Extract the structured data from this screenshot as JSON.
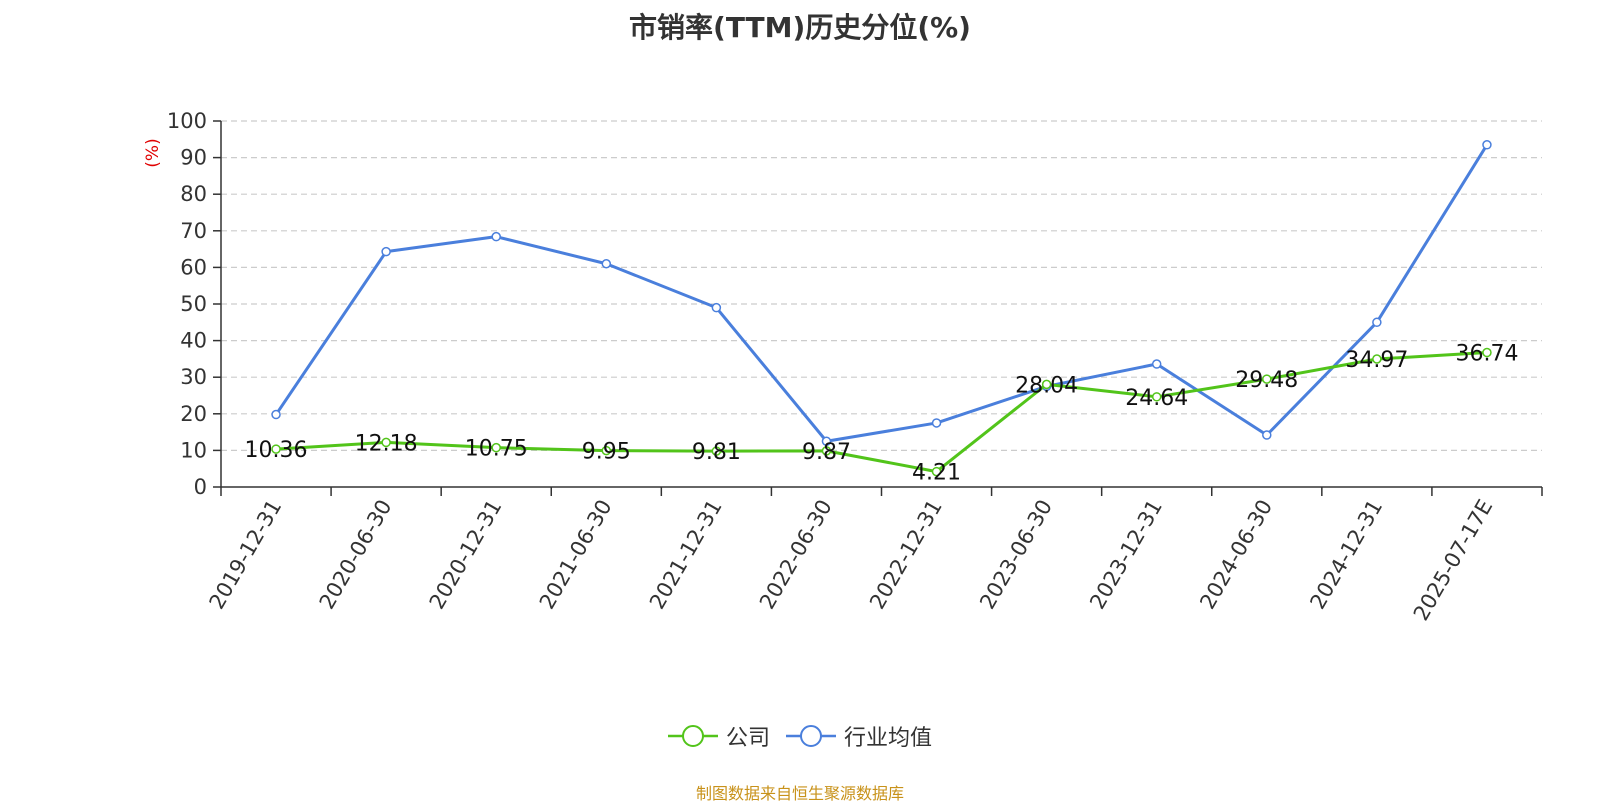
{
  "chart_data": {
    "type": "line",
    "title": "市销率(TTM)历史分位(%)",
    "ylabel": "(%)",
    "xlabel": "",
    "categories": [
      "2019-12-31",
      "2020-06-30",
      "2020-12-31",
      "2021-06-30",
      "2021-12-31",
      "2022-06-30",
      "2022-12-31",
      "2023-06-30",
      "2023-12-31",
      "2024-06-30",
      "2024-12-31",
      "2025-07-17E"
    ],
    "ylim": [
      0,
      100
    ],
    "yticks": [
      0,
      10,
      20,
      30,
      40,
      50,
      60,
      70,
      80,
      90,
      100
    ],
    "grid": true,
    "legend_position": "bottom",
    "series": [
      {
        "name": "公司",
        "color": "#52c41a",
        "values": [
          10.36,
          12.18,
          10.75,
          9.95,
          9.81,
          9.87,
          4.21,
          28.04,
          24.64,
          29.48,
          34.97,
          36.74
        ],
        "labels": [
          "10.36",
          "12.18",
          "10.75",
          "9.95",
          "9.81",
          "9.87",
          "4.21",
          "28.04",
          "24.64",
          "29.48",
          "34.97",
          "36.74"
        ]
      },
      {
        "name": "行业均值",
        "color": "#4a7fdc",
        "values": [
          19.8,
          64.3,
          68.4,
          61.0,
          49.0,
          12.5,
          17.5,
          27.5,
          33.6,
          14.2,
          45.0,
          93.5
        ]
      }
    ]
  },
  "footer": {
    "text": "制图数据来自恒生聚源数据库",
    "color": "#c8921a"
  },
  "ylabel_color": "#e00000"
}
